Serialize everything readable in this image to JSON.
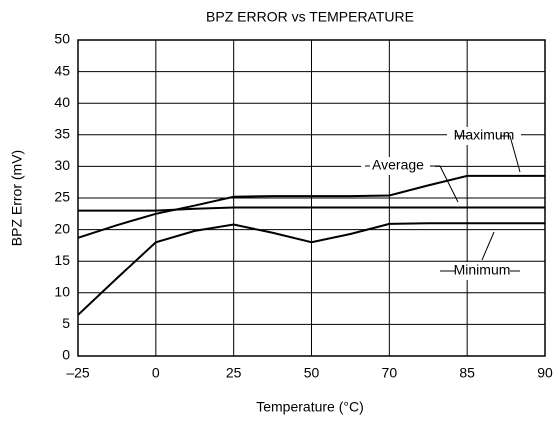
{
  "chart_data": {
    "type": "line",
    "title": "BPZ ERROR vs TEMPERATURE",
    "x_label": "Temperature (°C)",
    "y_label": "BPZ Error (mV)",
    "categories": [
      "–25",
      null,
      "0",
      null,
      "25",
      null,
      "50",
      null,
      "70",
      null,
      "85",
      null,
      "90"
    ],
    "series": [
      {
        "name": "Maximum",
        "color": "#000000",
        "values": [
          18.7,
          20.7,
          22.5,
          23.8,
          25.2,
          25.3,
          25.3,
          25.3,
          25.4,
          27.0,
          28.5,
          28.5,
          28.5
        ]
      },
      {
        "name": "Average",
        "color": "#000000",
        "values": [
          23,
          23,
          23,
          23.3,
          23.5,
          23.5,
          23.5,
          23.5,
          23.5,
          23.5,
          23.5,
          23.5,
          23.5
        ]
      },
      {
        "name": "Minimum",
        "color": "#000000",
        "values": [
          6.5,
          12.3,
          18,
          19.8,
          20.8,
          19.5,
          18,
          19.3,
          20.9,
          21,
          21,
          21,
          21
        ]
      }
    ],
    "ylim": [
      0,
      50
    ],
    "yticks": [
      0,
      5,
      10,
      15,
      20,
      25,
      30,
      35,
      40,
      45,
      50
    ],
    "grid": true
  }
}
